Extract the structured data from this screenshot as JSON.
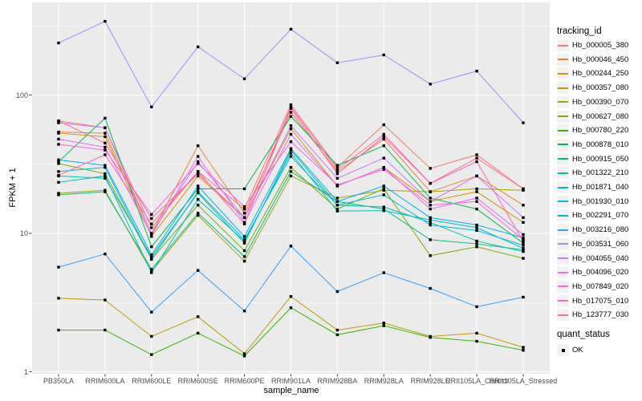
{
  "figure": {
    "x_axis_title": "sample_name",
    "y_axis_title": "FPKM + 1",
    "y_tick_labels": [
      "1",
      "10",
      "100"
    ]
  },
  "legend": {
    "tracking_title": "tracking_id",
    "quant_title": "quant_status",
    "quant_items": [
      {
        "label": "OK",
        "shape": "black-filled-square"
      }
    ]
  },
  "chart_data": {
    "type": "line",
    "x_type": "categorical",
    "title": "",
    "xlabel": "sample_name",
    "ylabel": "FPKM + 1",
    "y_scale": "log10",
    "ylim": [
      1,
      450
    ],
    "y_major_gridlines": [
      1,
      10,
      100
    ],
    "y_minor_gridlines": [
      3.162,
      31.62,
      316.2
    ],
    "grid": true,
    "panel_background": "#EBEBEB",
    "gridline_color": "#FFFFFF",
    "legend_position": "right",
    "point_shape": "filled-black-square",
    "point_meaning": "quant_status = OK",
    "categories": [
      "PB350LA",
      "RRIM600LA",
      "RRIM600LE",
      "RRIM600SE",
      "RRIM600PE",
      "RRIM901LA",
      "RRIM928BA",
      "RRIM928LA",
      "RRIM928LE",
      "RRII105LA_Control",
      "RRII105LA_Stressed"
    ],
    "series": [
      {
        "name": "Hb_000005_380",
        "color": "#F8766D",
        "values": [
          65,
          58,
          11,
          28,
          15,
          85,
          30,
          61,
          29.5,
          37,
          21
        ]
      },
      {
        "name": "Hb_000046_450",
        "color": "#EA8331",
        "values": [
          54,
          53,
          10,
          43,
          14,
          75,
          28,
          48,
          20,
          26,
          16
        ]
      },
      {
        "name": "Hb_000244_250",
        "color": "#D89000",
        "values": [
          53,
          50,
          9.5,
          26,
          13,
          57,
          22,
          30,
          17,
          20,
          12
        ]
      },
      {
        "name": "Hb_000357_080",
        "color": "#C09B00",
        "values": [
          3.4,
          3.3,
          1.8,
          2.5,
          1.35,
          3.5,
          2.0,
          2.25,
          1.8,
          1.9,
          1.5
        ]
      },
      {
        "name": "Hb_000390_070",
        "color": "#A3A500",
        "values": [
          19.5,
          20.5,
          5.3,
          13.5,
          6.3,
          26,
          18,
          20.5,
          20,
          21,
          20.5
        ]
      },
      {
        "name": "Hb_000627_080",
        "color": "#7CAE00",
        "values": [
          32,
          27,
          6.5,
          16,
          7.5,
          30,
          15,
          21,
          6.9,
          8.0,
          6.6
        ]
      },
      {
        "name": "Hb_000780_220",
        "color": "#39B600",
        "values": [
          2.0,
          2.0,
          1.33,
          1.9,
          1.3,
          2.9,
          1.85,
          2.15,
          1.77,
          1.66,
          1.43
        ]
      },
      {
        "name": "Hb_000878_010",
        "color": "#00BB4E",
        "values": [
          33,
          68,
          8,
          21,
          21,
          70,
          31,
          43,
          18,
          15,
          8.5
        ]
      },
      {
        "name": "Hb_000915_050",
        "color": "#00BF7D",
        "values": [
          19,
          20,
          5.5,
          14,
          6.8,
          28,
          17,
          15,
          9,
          8.4,
          7.6
        ]
      },
      {
        "name": "Hb_001322_210",
        "color": "#00C1A3",
        "values": [
          26,
          25,
          6.8,
          19.6,
          8.5,
          40,
          16,
          15.5,
          12,
          8.8,
          7.4
        ]
      },
      {
        "name": "Hb_001871_040",
        "color": "#00BFC4",
        "values": [
          23.4,
          26,
          5.2,
          17.6,
          8.8,
          38,
          14.5,
          14.6,
          12.5,
          11,
          7.8
        ]
      },
      {
        "name": "Hb_001930_010",
        "color": "#00BAE0",
        "values": [
          28,
          30,
          6.5,
          20,
          9,
          36,
          16,
          19,
          11.5,
          10.5,
          8.2
        ]
      },
      {
        "name": "Hb_002291_070",
        "color": "#00B0F6",
        "values": [
          34,
          31,
          7,
          22,
          9.5,
          41,
          17,
          22,
          13,
          11.5,
          9.3
        ]
      },
      {
        "name": "Hb_003216_080",
        "color": "#35A2FF",
        "values": [
          5.7,
          7.1,
          2.7,
          5.4,
          2.75,
          8.1,
          3.8,
          5.2,
          4.0,
          2.95,
          3.46
        ]
      },
      {
        "name": "Hb_003531_060",
        "color": "#9590FF",
        "values": [
          238,
          341,
          82,
          223,
          131,
          299,
          171,
          195,
          120,
          149,
          63
        ]
      },
      {
        "name": "Hb_004055_040",
        "color": "#C77CFF",
        "values": [
          63,
          58,
          10,
          33,
          13,
          60,
          25,
          35,
          17,
          26,
          13
        ]
      },
      {
        "name": "Hb_004096_020",
        "color": "#E76BF3",
        "values": [
          48,
          42,
          9.7,
          36,
          12,
          52,
          22,
          30,
          15,
          18,
          9.8
        ]
      },
      {
        "name": "Hb_007849_020",
        "color": "#FA62DB",
        "values": [
          44,
          40,
          13.7,
          32,
          15.6,
          46,
          22.4,
          29,
          16,
          17,
          9
        ]
      },
      {
        "name": "Hb_017075_010",
        "color": "#FF62BC",
        "values": [
          26.3,
          37,
          11.7,
          28,
          11.7,
          80,
          27,
          50,
          23,
          33,
          8.8
        ]
      },
      {
        "name": "Hb_123777_030",
        "color": "#FF6A98",
        "values": [
          65,
          45,
          12.8,
          27,
          13,
          82,
          29,
          52,
          23,
          35,
          21
        ]
      }
    ]
  }
}
